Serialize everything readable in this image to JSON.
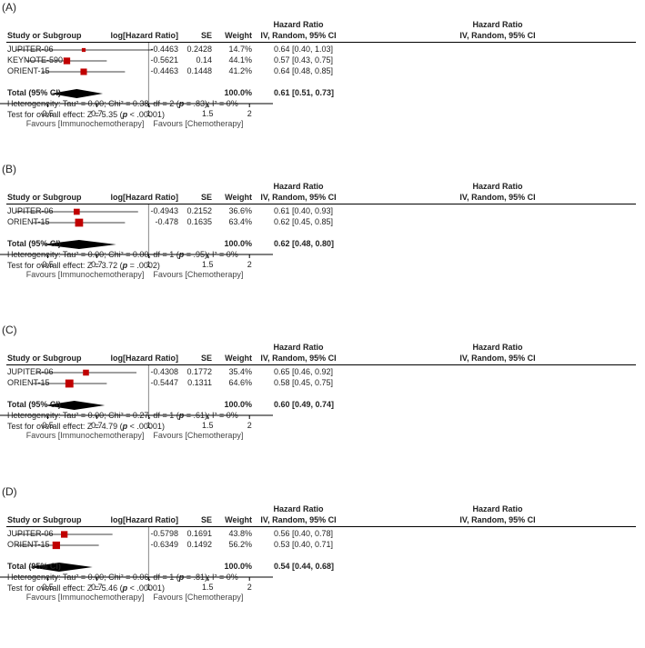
{
  "header": {
    "study": "Study or Subgroup",
    "loghr": "log[Hazard Ratio]",
    "se": "SE",
    "weight": "Weight",
    "hr_title": "Hazard Ratio",
    "hr_method": "IV, Random, 95% CI"
  },
  "colors": {
    "marker": "#c00000",
    "line": "#000000",
    "text": "#222222"
  },
  "chart_data": [
    {
      "type": "forest",
      "panel_label": "(A)",
      "xscale": "log",
      "xlim": [
        0.36,
        2.35
      ],
      "ticks": [
        "0.5",
        "0.7",
        "1",
        "1.5",
        "2"
      ],
      "xlabel_left": "Favours [Immunochemotherapy]",
      "xlabel_right": "Favours [Chemotherapy]",
      "studies": [
        {
          "name": "JUPITER-06",
          "loghr": "-0.4463",
          "se": "0.2428",
          "weight": "14.7%",
          "ci_text": "0.64 [0.40, 1.03]",
          "hr": 0.64,
          "lo": 0.4,
          "hi": 1.03,
          "w": 14.7
        },
        {
          "name": "KEYNOTE-590",
          "loghr": "-0.5621",
          "se": "0.14",
          "weight": "44.1%",
          "ci_text": "0.57 [0.43, 0.75]",
          "hr": 0.57,
          "lo": 0.43,
          "hi": 0.75,
          "w": 44.1
        },
        {
          "name": "ORIENT-15",
          "loghr": "-0.4463",
          "se": "0.1448",
          "weight": "41.2%",
          "ci_text": "0.64 [0.48, 0.85]",
          "hr": 0.64,
          "lo": 0.48,
          "hi": 0.85,
          "w": 41.2
        }
      ],
      "total": {
        "label": "Total (95% CI)",
        "weight": "100.0%",
        "ci_text": "0.61 [0.51, 0.73]",
        "hr": 0.61,
        "lo": 0.51,
        "hi": 0.73
      },
      "heterogeneity": {
        "prefix": "Heterogeneity: Tau² = 0.00; Chi² = 0.38, df = 2 (",
        "p": "p",
        "rest": " = .83); I² = 0%"
      },
      "overall": {
        "prefix": "Test for overall effect: Z = 5.35 (",
        "p": "p",
        "rest": " < .00001)"
      }
    },
    {
      "type": "forest",
      "panel_label": "(B)",
      "xscale": "log",
      "xlim": [
        0.36,
        2.35
      ],
      "ticks": [
        "0.5",
        "0.7",
        "1",
        "1.5",
        "2"
      ],
      "xlabel_left": "Favours [Immunochemotherapy]",
      "xlabel_right": "Favours [Chemotherapy]",
      "studies": [
        {
          "name": "JUPITER-06",
          "loghr": "-0.4943",
          "se": "0.2152",
          "weight": "36.6%",
          "ci_text": "0.61 [0.40, 0.93]",
          "hr": 0.61,
          "lo": 0.4,
          "hi": 0.93,
          "w": 36.6
        },
        {
          "name": "ORIENT-15",
          "loghr": "-0.478",
          "se": "0.1635",
          "weight": "63.4%",
          "ci_text": "0.62 [0.45, 0.85]",
          "hr": 0.62,
          "lo": 0.45,
          "hi": 0.85,
          "w": 63.4
        }
      ],
      "total": {
        "label": "Total (95% CI)",
        "weight": "100.0%",
        "ci_text": "0.62 [0.48, 0.80]",
        "hr": 0.62,
        "lo": 0.48,
        "hi": 0.8
      },
      "heterogeneity": {
        "prefix": "Heterogeneity: Tau² = 0.00; Chi² = 0.00, df = 1 (",
        "p": "p",
        "rest": " = .95); I² = 0%"
      },
      "overall": {
        "prefix": "Test for overall effect: Z = 3.72 (",
        "p": "p",
        "rest": " = .0002)"
      }
    },
    {
      "type": "forest",
      "panel_label": "(C)",
      "xscale": "log",
      "xlim": [
        0.36,
        2.35
      ],
      "ticks": [
        "0.5",
        "0.7",
        "1",
        "1.5",
        "2"
      ],
      "xlabel_left": "Favours [Immunochemotherapy]",
      "xlabel_right": "Favours [Chemotherapy]",
      "studies": [
        {
          "name": "JUPITER-06",
          "loghr": "-0.4308",
          "se": "0.1772",
          "weight": "35.4%",
          "ci_text": "0.65 [0.46, 0.92]",
          "hr": 0.65,
          "lo": 0.46,
          "hi": 0.92,
          "w": 35.4
        },
        {
          "name": "ORIENT-15",
          "loghr": "-0.5447",
          "se": "0.1311",
          "weight": "64.6%",
          "ci_text": "0.58 [0.45, 0.75]",
          "hr": 0.58,
          "lo": 0.45,
          "hi": 0.75,
          "w": 64.6
        }
      ],
      "total": {
        "label": "Total (95% CI)",
        "weight": "100.0%",
        "ci_text": "0.60 [0.49, 0.74]",
        "hr": 0.6,
        "lo": 0.49,
        "hi": 0.74
      },
      "heterogeneity": {
        "prefix": "Heterogeneity: Tau² = 0.00; Chi² = 0.27, df = 1 (",
        "p": "p",
        "rest": " = .61); I² = 0%"
      },
      "overall": {
        "prefix": "Test for overall effect: Z = 4.79 (",
        "p": "p",
        "rest": " < .00001)"
      }
    },
    {
      "type": "forest",
      "panel_label": "(D)",
      "xscale": "log",
      "xlim": [
        0.36,
        2.35
      ],
      "ticks": [
        "0.5",
        "0.7",
        "1",
        "1.5",
        "2"
      ],
      "xlabel_left": "Favours [Immunochemotherapy]",
      "xlabel_right": "Favours [Chemotherapy]",
      "studies": [
        {
          "name": "JUPITER-06",
          "loghr": "-0.5798",
          "se": "0.1691",
          "weight": "43.8%",
          "ci_text": "0.56 [0.40, 0.78]",
          "hr": 0.56,
          "lo": 0.4,
          "hi": 0.78,
          "w": 43.8
        },
        {
          "name": "ORIENT-15",
          "loghr": "-0.6349",
          "se": "0.1492",
          "weight": "56.2%",
          "ci_text": "0.53 [0.40, 0.71]",
          "hr": 0.53,
          "lo": 0.4,
          "hi": 0.71,
          "w": 56.2
        }
      ],
      "total": {
        "label": "Total (95% CI)",
        "weight": "100.0%",
        "ci_text": "0.54 [0.44, 0.68]",
        "hr": 0.54,
        "lo": 0.44,
        "hi": 0.68
      },
      "heterogeneity": {
        "prefix": "Heterogeneity: Tau² = 0.00; Chi² = 0.06, df = 1 (",
        "p": "p",
        "rest": " = .81); I² = 0%"
      },
      "overall": {
        "prefix": "Test for overall effect: Z = 5.46 (",
        "p": "p",
        "rest": " < .00001)"
      }
    }
  ]
}
